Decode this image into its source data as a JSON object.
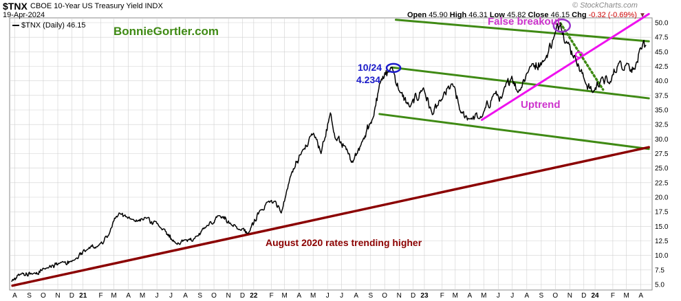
{
  "header": {
    "symbol": "$TNX",
    "name": "CBOE 10-Year US Treasury Yield INDX",
    "date": "19-Apr-2024",
    "open_label": "Open",
    "open": "45.90",
    "high_label": "High",
    "high": "46.31",
    "low_label": "Low",
    "low": "45.82",
    "close_label": "Close",
    "close": "46.15",
    "chg_label": "Chg",
    "chg": "-0.32 (-0.69%)",
    "caret": "▼",
    "credit": "© StockCharts.com",
    "legend": "$TNX (Daily) 46.15"
  },
  "annotations": {
    "site": "BonnieGortler.com",
    "false_breakout": "False breakout",
    "uptrend": "Uptrend",
    "aug2020": "August 2020 rates trending higher",
    "oct_date": "10/24",
    "oct_value": "4.234"
  },
  "colors": {
    "price": "#000000",
    "channel": "#3f8a14",
    "uptrend": "#ee11ee",
    "longterm": "#8b0000",
    "highlight_circle_blue": "#1a1ac9",
    "highlight_circle_purple": "#9933cc",
    "dotted_decline": "#3f8a14",
    "grid": "#d0d0d0"
  },
  "chart_data": {
    "type": "line",
    "title": "$TNX CBOE 10-Year US Treasury Yield INDX",
    "y_axis_side": "right",
    "ylim": [
      5.0,
      50.0
    ],
    "y_ticks": [
      "5.0",
      "7.5",
      "10.0",
      "12.5",
      "15.0",
      "17.5",
      "20.0",
      "22.5",
      "25.0",
      "27.5",
      "30.0",
      "32.5",
      "35.0",
      "37.5",
      "40.0",
      "42.5",
      "45.0",
      "47.5",
      "50.0"
    ],
    "x_ticks": [
      "A",
      "S",
      "O",
      "N",
      "D",
      "21",
      "F",
      "M",
      "A",
      "M",
      "J",
      "J",
      "A",
      "S",
      "O",
      "N",
      "D",
      "22",
      "F",
      "M",
      "A",
      "M",
      "J",
      "J",
      "A",
      "S",
      "O",
      "N",
      "D",
      "23",
      "F",
      "M",
      "A",
      "M",
      "J",
      "J",
      "A",
      "S",
      "O",
      "N",
      "D",
      "24",
      "F",
      "M",
      "A"
    ],
    "x_tick_years": [
      "21",
      "22",
      "23",
      "24"
    ],
    "grid": true,
    "series": [
      {
        "name": "$TNX (Daily)",
        "x": [
          "2020-08-01",
          "2020-08-20",
          "2020-09-15",
          "2020-10-15",
          "2020-11-15",
          "2020-12-15",
          "2021-01-10",
          "2021-02-01",
          "2021-02-25",
          "2021-03-19",
          "2021-04-15",
          "2021-05-15",
          "2021-06-15",
          "2021-07-20",
          "2021-08-05",
          "2021-09-01",
          "2021-09-20",
          "2021-10-21",
          "2021-11-15",
          "2021-12-01",
          "2021-12-20",
          "2022-01-15",
          "2022-02-15",
          "2022-03-01",
          "2022-03-20",
          "2022-04-15",
          "2022-05-09",
          "2022-05-25",
          "2022-06-14",
          "2022-06-25",
          "2022-07-15",
          "2022-08-01",
          "2022-08-20",
          "2022-09-15",
          "2022-09-27",
          "2022-10-24",
          "2022-11-10",
          "2022-12-01",
          "2022-12-30",
          "2023-01-18",
          "2023-02-05",
          "2023-03-02",
          "2023-03-20",
          "2023-04-10",
          "2023-05-04",
          "2023-05-30",
          "2023-06-15",
          "2023-07-07",
          "2023-07-20",
          "2023-08-15",
          "2023-09-15",
          "2023-10-05",
          "2023-10-19",
          "2023-11-01",
          "2023-11-20",
          "2023-12-10",
          "2023-12-27",
          "2024-01-15",
          "2024-02-01",
          "2024-02-20",
          "2024-03-10",
          "2024-03-25",
          "2024-04-10",
          "2024-04-19"
        ],
        "y": [
          5.5,
          6.8,
          6.8,
          7.8,
          8.8,
          9.3,
          11.0,
          11.5,
          13.5,
          17.3,
          16.2,
          16.5,
          14.8,
          12.0,
          12.6,
          13.3,
          14.8,
          16.8,
          15.2,
          14.5,
          13.8,
          17.8,
          19.3,
          17.3,
          23.5,
          28.0,
          31.0,
          27.5,
          34.5,
          30.0,
          28.8,
          26.0,
          29.5,
          34.0,
          39.5,
          42.34,
          38.0,
          35.5,
          38.8,
          34.2,
          36.5,
          39.5,
          34.5,
          33.5,
          33.8,
          37.8,
          37.0,
          40.8,
          38.0,
          42.5,
          43.5,
          47.5,
          49.93,
          46.8,
          44.0,
          40.0,
          38.0,
          40.5,
          39.5,
          43.0,
          43.0,
          42.0,
          45.5,
          46.15
        ]
      }
    ],
    "trendlines": [
      {
        "name": "Upper channel",
        "from": [
          "2022-11-01",
          50.5
        ],
        "to": [
          "2024-04-25",
          46.8
        ]
      },
      {
        "name": "Middle channel",
        "from": [
          "2022-10-24",
          42.3
        ],
        "to": [
          "2024-04-25",
          37.0
        ]
      },
      {
        "name": "Lower channel",
        "from": [
          "2022-09-27",
          34.3
        ],
        "to": [
          "2024-04-25",
          28.3
        ]
      },
      {
        "name": "Uptrend",
        "from": [
          "2023-05-04",
          33.3
        ],
        "to": [
          "2024-04-25",
          51.5
        ]
      },
      {
        "name": "August 2020 rates trending higher",
        "from": [
          "2020-08-03",
          4.8
        ],
        "to": [
          "2024-04-25",
          28.6
        ]
      },
      {
        "name": "Decline from peak",
        "from": [
          "2023-10-19",
          49.9
        ],
        "to": [
          "2024-01-18",
          38.5
        ]
      }
    ],
    "highlights": [
      {
        "label": "10/24 high",
        "x": "2022-10-24",
        "y": 42.34
      },
      {
        "label": "False breakout peak",
        "x": "2023-10-19",
        "y": 49.5
      },
      {
        "label": "Breakdown",
        "x": "2023-11-28",
        "y": 44.5
      }
    ]
  }
}
